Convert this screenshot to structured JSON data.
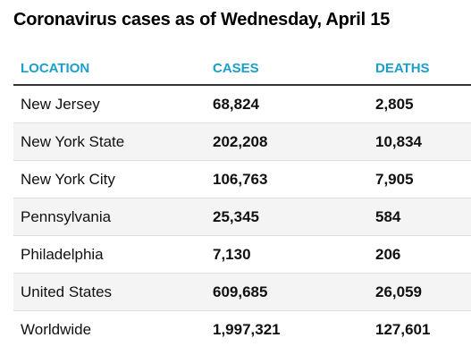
{
  "title": "Coronavirus cases as of Wednesday, April 15",
  "colors": {
    "header_text": "#1a9fc9",
    "shaded_row": "#f4f4f4"
  },
  "chart_data": {
    "type": "table",
    "title": "Coronavirus cases as of Wednesday, April 15",
    "columns": [
      "LOCATION",
      "CASES",
      "DEATHS"
    ],
    "rows": [
      [
        "New Jersey",
        "68,824",
        "2,805"
      ],
      [
        "New York State",
        "202,208",
        "10,834"
      ],
      [
        "New York City",
        "106,763",
        "7,905"
      ],
      [
        "Pennsylvania",
        "25,345",
        "584"
      ],
      [
        "Philadelphia",
        "7,130",
        "206"
      ],
      [
        "United States",
        "609,685",
        "26,059"
      ],
      [
        "Worldwide",
        "1,997,321",
        "127,601"
      ]
    ]
  }
}
